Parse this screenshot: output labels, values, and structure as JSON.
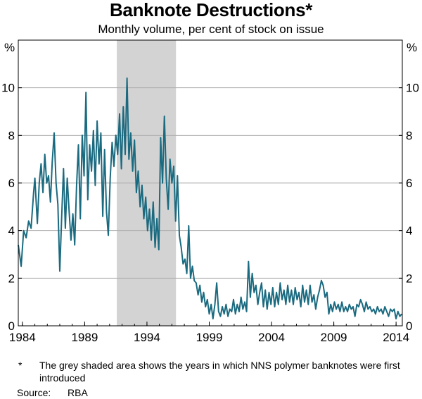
{
  "chart_data": {
    "type": "line",
    "title": "Banknote Destructions*",
    "subtitle": "Monthly volume, per cent of stock on issue",
    "ylabel_left": "%",
    "ylabel_right": "%",
    "ylim": [
      0,
      12
    ],
    "yticks": [
      0,
      2,
      4,
      6,
      8,
      10
    ],
    "xlim": [
      1983.67,
      2014.5
    ],
    "xticks": [
      1984,
      1989,
      1994,
      1999,
      2004,
      2009,
      2014
    ],
    "grid": true,
    "shaded_region": {
      "from": 1991.58,
      "to": 1996.33
    },
    "series": [
      {
        "color": "#1a6a80",
        "points": [
          [
            1983.67,
            3.4
          ],
          [
            1983.9,
            2.5
          ],
          [
            1984.1,
            4.0
          ],
          [
            1984.3,
            3.7
          ],
          [
            1984.5,
            4.4
          ],
          [
            1984.7,
            4.1
          ],
          [
            1984.9,
            5.6
          ],
          [
            1985.0,
            6.2
          ],
          [
            1985.2,
            4.3
          ],
          [
            1985.35,
            6.0
          ],
          [
            1985.5,
            6.8
          ],
          [
            1985.65,
            5.6
          ],
          [
            1985.8,
            7.2
          ],
          [
            1985.95,
            6.0
          ],
          [
            1986.1,
            6.3
          ],
          [
            1986.25,
            5.2
          ],
          [
            1986.4,
            6.9
          ],
          [
            1986.55,
            8.1
          ],
          [
            1986.7,
            6.0
          ],
          [
            1986.85,
            5.1
          ],
          [
            1987.0,
            2.3
          ],
          [
            1987.15,
            4.5
          ],
          [
            1987.3,
            6.6
          ],
          [
            1987.45,
            4.1
          ],
          [
            1987.6,
            6.2
          ],
          [
            1987.75,
            4.8
          ],
          [
            1987.9,
            3.6
          ],
          [
            1988.05,
            4.7
          ],
          [
            1988.2,
            3.4
          ],
          [
            1988.35,
            5.9
          ],
          [
            1988.5,
            7.6
          ],
          [
            1988.65,
            4.5
          ],
          [
            1988.8,
            8.0
          ],
          [
            1988.95,
            6.3
          ],
          [
            1989.1,
            9.8
          ],
          [
            1989.25,
            5.3
          ],
          [
            1989.4,
            7.6
          ],
          [
            1989.55,
            6.5
          ],
          [
            1989.7,
            8.2
          ],
          [
            1989.85,
            5.9
          ],
          [
            1990.0,
            8.6
          ],
          [
            1990.15,
            6.8
          ],
          [
            1990.3,
            8.1
          ],
          [
            1990.45,
            4.6
          ],
          [
            1990.6,
            7.4
          ],
          [
            1990.75,
            4.8
          ],
          [
            1990.9,
            3.8
          ],
          [
            1991.05,
            6.2
          ],
          [
            1991.2,
            7.7
          ],
          [
            1991.35,
            6.7
          ],
          [
            1991.5,
            8.0
          ],
          [
            1991.65,
            7.2
          ],
          [
            1991.8,
            8.9
          ],
          [
            1991.95,
            6.6
          ],
          [
            1992.1,
            9.2
          ],
          [
            1992.25,
            7.2
          ],
          [
            1992.4,
            10.4
          ],
          [
            1992.55,
            7.0
          ],
          [
            1992.7,
            8.1
          ],
          [
            1992.85,
            6.5
          ],
          [
            1993.0,
            7.8
          ],
          [
            1993.15,
            5.6
          ],
          [
            1993.3,
            6.5
          ],
          [
            1993.45,
            5.0
          ],
          [
            1993.6,
            5.9
          ],
          [
            1993.75,
            4.5
          ],
          [
            1993.9,
            5.4
          ],
          [
            1994.05,
            4.0
          ],
          [
            1994.2,
            4.9
          ],
          [
            1994.35,
            3.6
          ],
          [
            1994.5,
            5.2
          ],
          [
            1994.65,
            3.3
          ],
          [
            1994.8,
            4.5
          ],
          [
            1994.95,
            3.2
          ],
          [
            1995.1,
            7.9
          ],
          [
            1995.25,
            6.0
          ],
          [
            1995.4,
            8.8
          ],
          [
            1995.55,
            6.2
          ],
          [
            1995.7,
            4.9
          ],
          [
            1995.85,
            7.0
          ],
          [
            1996.0,
            6.0
          ],
          [
            1996.15,
            6.7
          ],
          [
            1996.3,
            4.4
          ],
          [
            1996.45,
            6.3
          ],
          [
            1996.6,
            3.8
          ],
          [
            1996.75,
            3.3
          ],
          [
            1996.9,
            2.6
          ],
          [
            1997.05,
            2.8
          ],
          [
            1997.2,
            2.2
          ],
          [
            1997.35,
            4.2
          ],
          [
            1997.5,
            2.0
          ],
          [
            1997.65,
            2.5
          ],
          [
            1997.8,
            1.9
          ],
          [
            1997.95,
            1.8
          ],
          [
            1998.1,
            1.3
          ],
          [
            1998.25,
            1.7
          ],
          [
            1998.4,
            1.0
          ],
          [
            1998.55,
            1.4
          ],
          [
            1998.7,
            0.8
          ],
          [
            1998.85,
            1.1
          ],
          [
            1999.0,
            0.5
          ],
          [
            1999.15,
            0.9
          ],
          [
            1999.3,
            0.3
          ],
          [
            1999.45,
            0.9
          ],
          [
            1999.6,
            1.8
          ],
          [
            1999.75,
            0.6
          ],
          [
            1999.9,
            0.4
          ],
          [
            2000.05,
            0.8
          ],
          [
            2000.2,
            0.5
          ],
          [
            2000.35,
            0.9
          ],
          [
            2000.5,
            0.4
          ],
          [
            2000.65,
            0.7
          ],
          [
            2000.8,
            0.6
          ],
          [
            2000.95,
            1.1
          ],
          [
            2001.1,
            0.5
          ],
          [
            2001.25,
            0.9
          ],
          [
            2001.4,
            0.6
          ],
          [
            2001.55,
            1.2
          ],
          [
            2001.7,
            0.7
          ],
          [
            2001.85,
            1.0
          ],
          [
            2002.0,
            0.6
          ],
          [
            2002.15,
            2.7
          ],
          [
            2002.3,
            1.2
          ],
          [
            2002.45,
            2.2
          ],
          [
            2002.6,
            1.4
          ],
          [
            2002.75,
            1.7
          ],
          [
            2002.9,
            0.9
          ],
          [
            2003.05,
            1.4
          ],
          [
            2003.2,
            1.8
          ],
          [
            2003.35,
            0.8
          ],
          [
            2003.5,
            1.5
          ],
          [
            2003.65,
            0.7
          ],
          [
            2003.8,
            1.4
          ],
          [
            2003.95,
            0.9
          ],
          [
            2004.1,
            1.6
          ],
          [
            2004.25,
            0.8
          ],
          [
            2004.4,
            1.4
          ],
          [
            2004.55,
            0.9
          ],
          [
            2004.7,
            1.8
          ],
          [
            2004.85,
            1.1
          ],
          [
            2005.0,
            1.5
          ],
          [
            2005.15,
            0.9
          ],
          [
            2005.3,
            1.7
          ],
          [
            2005.45,
            1.0
          ],
          [
            2005.6,
            1.5
          ],
          [
            2005.75,
            0.9
          ],
          [
            2005.9,
            1.6
          ],
          [
            2006.05,
            1.1
          ],
          [
            2006.2,
            1.4
          ],
          [
            2006.35,
            0.8
          ],
          [
            2006.5,
            1.7
          ],
          [
            2006.65,
            1.0
          ],
          [
            2006.8,
            1.5
          ],
          [
            2006.95,
            0.9
          ],
          [
            2007.1,
            1.7
          ],
          [
            2007.25,
            1.0
          ],
          [
            2007.4,
            1.3
          ],
          [
            2007.55,
            0.7
          ],
          [
            2007.7,
            1.2
          ],
          [
            2007.85,
            1.5
          ],
          [
            2008.0,
            1.9
          ],
          [
            2008.15,
            1.7
          ],
          [
            2008.3,
            1.2
          ],
          [
            2008.45,
            1.4
          ],
          [
            2008.6,
            0.5
          ],
          [
            2008.75,
            0.9
          ],
          [
            2008.9,
            0.6
          ],
          [
            2009.05,
            1.0
          ],
          [
            2009.2,
            0.7
          ],
          [
            2009.35,
            0.9
          ],
          [
            2009.5,
            0.6
          ],
          [
            2009.65,
            1.0
          ],
          [
            2009.8,
            0.6
          ],
          [
            2009.95,
            0.8
          ],
          [
            2010.1,
            0.6
          ],
          [
            2010.25,
            0.9
          ],
          [
            2010.4,
            0.7
          ],
          [
            2010.55,
            0.8
          ],
          [
            2010.7,
            0.4
          ],
          [
            2010.85,
            0.9
          ],
          [
            2011.0,
            0.8
          ],
          [
            2011.15,
            1.1
          ],
          [
            2011.3,
            0.9
          ],
          [
            2011.45,
            0.6
          ],
          [
            2011.6,
            1.0
          ],
          [
            2011.75,
            0.7
          ],
          [
            2011.9,
            0.8
          ],
          [
            2012.05,
            0.6
          ],
          [
            2012.2,
            0.7
          ],
          [
            2012.35,
            0.5
          ],
          [
            2012.5,
            0.8
          ],
          [
            2012.65,
            0.6
          ],
          [
            2012.8,
            0.7
          ],
          [
            2012.95,
            0.5
          ],
          [
            2013.1,
            0.8
          ],
          [
            2013.25,
            0.6
          ],
          [
            2013.4,
            0.4
          ],
          [
            2013.55,
            0.7
          ],
          [
            2013.7,
            0.6
          ],
          [
            2013.85,
            0.7
          ],
          [
            2014.0,
            0.3
          ],
          [
            2014.15,
            0.6
          ],
          [
            2014.3,
            0.4
          ],
          [
            2014.45,
            0.5
          ]
        ]
      }
    ]
  },
  "footnote": {
    "marker": "*",
    "text": "The grey shaded area shows the years in which NNS polymer banknotes were first introduced"
  },
  "source": {
    "label": "Source:",
    "value": "RBA"
  },
  "colors": {
    "line": "#1a6a80",
    "shade": "#d3d3d3",
    "grid": "#b0b0b0",
    "axis": "#000000"
  }
}
